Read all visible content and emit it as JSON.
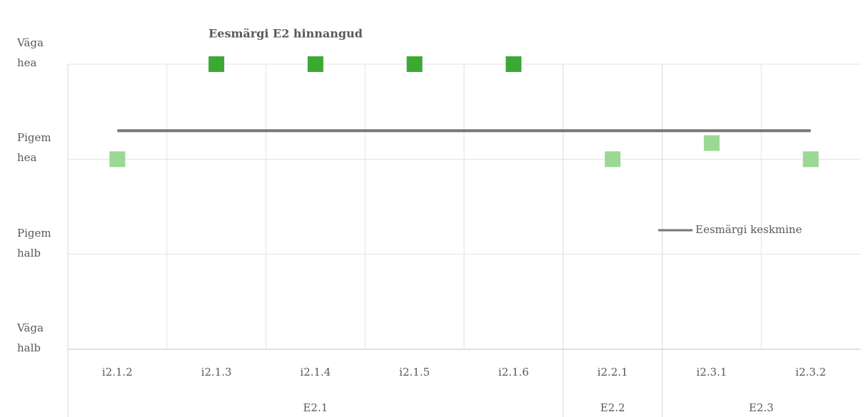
{
  "chart_data": {
    "type": "scatter",
    "title": "Eesmärgi E2 hinnangud",
    "categories": [
      "i2.1.2",
      "i2.1.3",
      "i2.1.4",
      "i2.1.5",
      "i2.1.6",
      "i2.2.1",
      "i2.3.1",
      "i2.3.2"
    ],
    "groups": [
      {
        "label": "E2.1",
        "span": 5
      },
      {
        "label": "E2.2",
        "span": 1
      },
      {
        "label": "E2.3",
        "span": 2
      }
    ],
    "values": [
      3,
      4,
      4,
      4,
      4,
      3,
      3.17,
      3
    ],
    "colors": [
      "#9bd893",
      "#3aaa35",
      "#3aaa35",
      "#3aaa35",
      "#3aaa35",
      "#9bd893",
      "#9bd893",
      "#9bd893"
    ],
    "series": [
      {
        "name": "Eesmärgi keskmine",
        "color": "#757575",
        "values": [
          3.3,
          3.3,
          3.3,
          3.3,
          3.3,
          3.3,
          3.3,
          3.3
        ]
      }
    ],
    "ylim": [
      1,
      4
    ],
    "yticks": [
      {
        "value": 1,
        "label": "Väga halb"
      },
      {
        "value": 2,
        "label": "Pigem halb"
      },
      {
        "value": 3,
        "label": "Pigem hea"
      },
      {
        "value": 4,
        "label": "Väga hea"
      }
    ],
    "grid": true,
    "legend": "right"
  }
}
